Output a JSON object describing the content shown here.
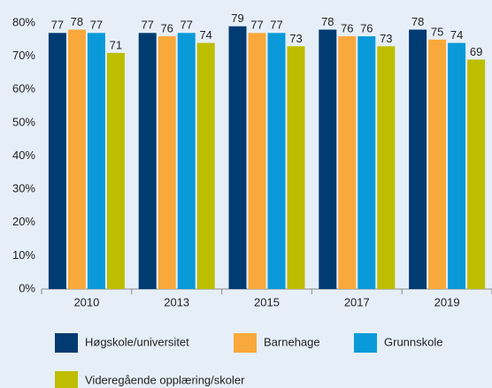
{
  "chart_data": {
    "type": "bar",
    "categories": [
      "2010",
      "2013",
      "2015",
      "2017",
      "2019"
    ],
    "series": [
      {
        "name": "Høgskole/universitet",
        "color": "#003b71",
        "values": [
          77,
          77,
          79,
          78,
          78
        ]
      },
      {
        "name": "Barnehage",
        "color": "#f9a83b",
        "values": [
          78,
          76,
          77,
          76,
          75
        ]
      },
      {
        "name": "Grunnskole",
        "color": "#0a9ad9",
        "values": [
          77,
          77,
          77,
          76,
          74
        ]
      },
      {
        "name": "Videregående opplæring/skoler",
        "color": "#bebd00",
        "values": [
          71,
          74,
          73,
          73,
          69
        ]
      }
    ],
    "ylim": [
      0,
      80
    ],
    "yticks": [
      {
        "value": 0,
        "label": "0%"
      },
      {
        "value": 10,
        "label": "10%"
      },
      {
        "value": 20,
        "label": "20%"
      },
      {
        "value": 30,
        "label": "30%"
      },
      {
        "value": 40,
        "label": "40%"
      },
      {
        "value": 50,
        "label": "50%"
      },
      {
        "value": 60,
        "label": "60%"
      },
      {
        "value": 70,
        "label": "70%"
      },
      {
        "value": 80,
        "label": "80%"
      }
    ],
    "grid": false
  }
}
